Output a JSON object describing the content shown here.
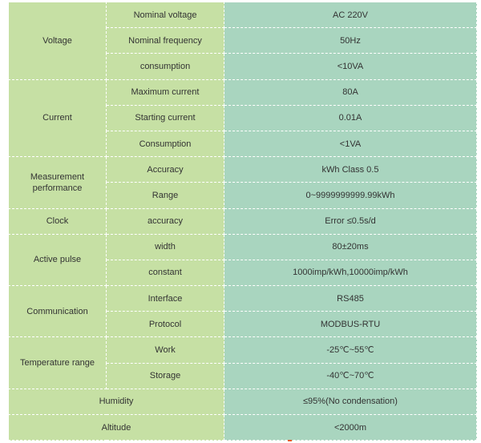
{
  "groups": [
    {
      "name": "Voltage",
      "rows": [
        {
          "param": "Nominal voltage",
          "value": "AC 220V"
        },
        {
          "param": "Nominal frequency",
          "value": "50Hz"
        },
        {
          "param": "consumption",
          "value": "<10VA"
        }
      ]
    },
    {
      "name": "Current",
      "rows": [
        {
          "param": "Maximum current",
          "value": "80A"
        },
        {
          "param": "Starting current",
          "value": "0.01A"
        },
        {
          "param": "Consumption",
          "value": "<1VA"
        }
      ]
    },
    {
      "name": "Measurement performance",
      "rows": [
        {
          "param": "Accuracy",
          "value": "kWh Class 0.5"
        },
        {
          "param": "Range",
          "value": "0~9999999999.99kWh"
        }
      ]
    },
    {
      "name": "Clock",
      "rows": [
        {
          "param": "accuracy",
          "value": "Error ≤0.5s/d"
        }
      ]
    },
    {
      "name": "Active pulse",
      "rows": [
        {
          "param": "width",
          "value": "80±20ms"
        },
        {
          "param": "constant",
          "value": "1000imp/kWh,10000imp/kWh"
        }
      ]
    },
    {
      "name": "Communication",
      "rows": [
        {
          "param": "Interface",
          "value": "RS485"
        },
        {
          "param": "Protocol",
          "value": "MODBUS-RTU"
        }
      ]
    },
    {
      "name": "Temperature range",
      "rows": [
        {
          "param": "Work",
          "value": "-25℃~55℃"
        },
        {
          "param": "Storage",
          "value": "-40℃~70℃"
        }
      ]
    }
  ],
  "single_rows": [
    {
      "name": "Humidity",
      "value": "≤95%(No condensation)"
    },
    {
      "name": "Altitude",
      "value": "<2000m"
    }
  ],
  "colors": {
    "label_cells": "#c6e0a4",
    "value_cells": "#a9d5bf",
    "border": "#ffffff"
  }
}
